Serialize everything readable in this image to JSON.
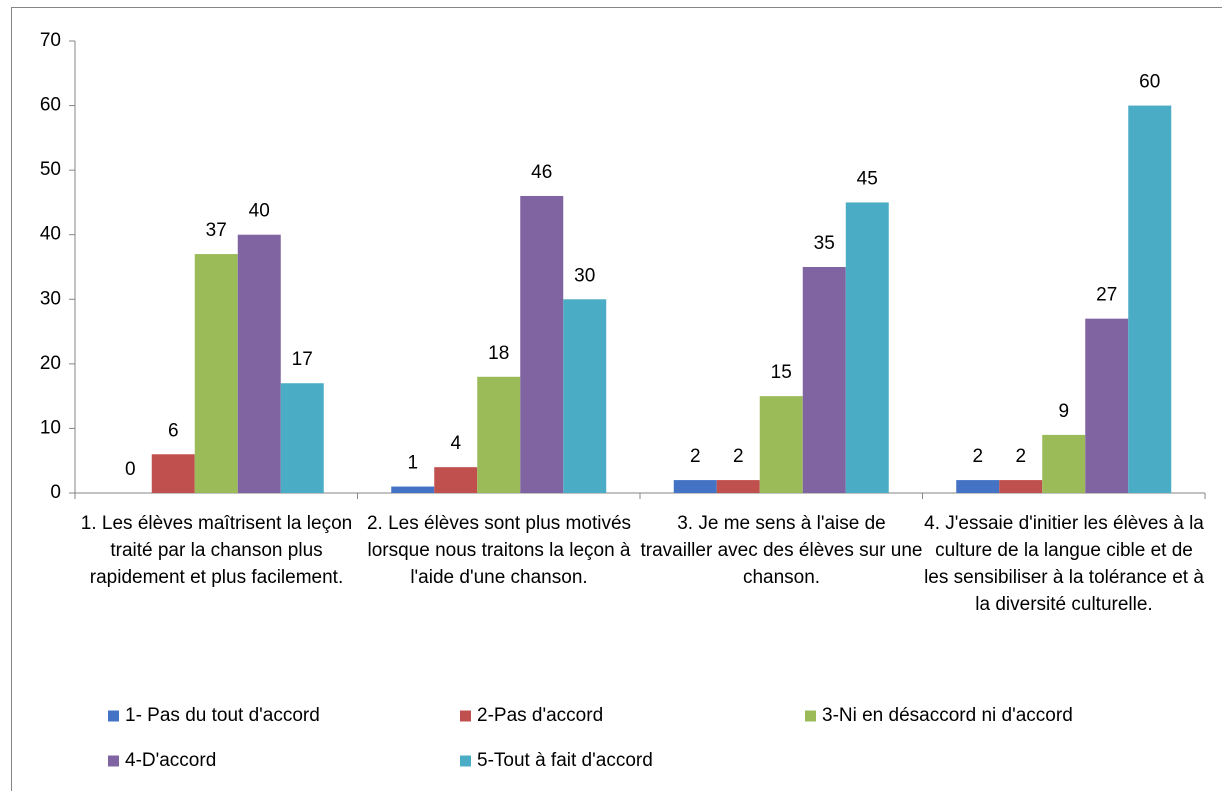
{
  "chart_data": {
    "type": "bar",
    "categories": [
      "1. Les élèves maîtrisent la leçon traité par la chanson plus rapidement et plus facilement.",
      "2. Les élèves sont plus motivés lorsque nous traitons la leçon à l'aide d'une chanson.",
      "3. Je me sens à l'aise de travailler avec des élèves sur une chanson.",
      "4. J'essaie d'initier les élèves à la culture de la langue cible et de les sensibiliser à la tolérance et à la diversité culturelle."
    ],
    "series": [
      {
        "name": "1- Pas du tout d'accord",
        "color": "#4472c4",
        "values": [
          0,
          1,
          2,
          2
        ]
      },
      {
        "name": "2-Pas d'accord",
        "color": "#c0504d",
        "values": [
          6,
          4,
          2,
          2
        ]
      },
      {
        "name": "3-Ni en désaccord ni d'accord",
        "color": "#9bbb59",
        "values": [
          37,
          18,
          15,
          9
        ]
      },
      {
        "name": "4-D'accord",
        "color": "#8064a2",
        "values": [
          40,
          46,
          35,
          27
        ]
      },
      {
        "name": "5-Tout à fait d'accord",
        "color": "#4bacc6",
        "values": [
          17,
          30,
          45,
          60
        ]
      }
    ],
    "ylim": [
      0,
      70
    ],
    "yticks": [
      0,
      10,
      20,
      30,
      40,
      50,
      60,
      70
    ],
    "grid": false,
    "legend": "bottom"
  }
}
